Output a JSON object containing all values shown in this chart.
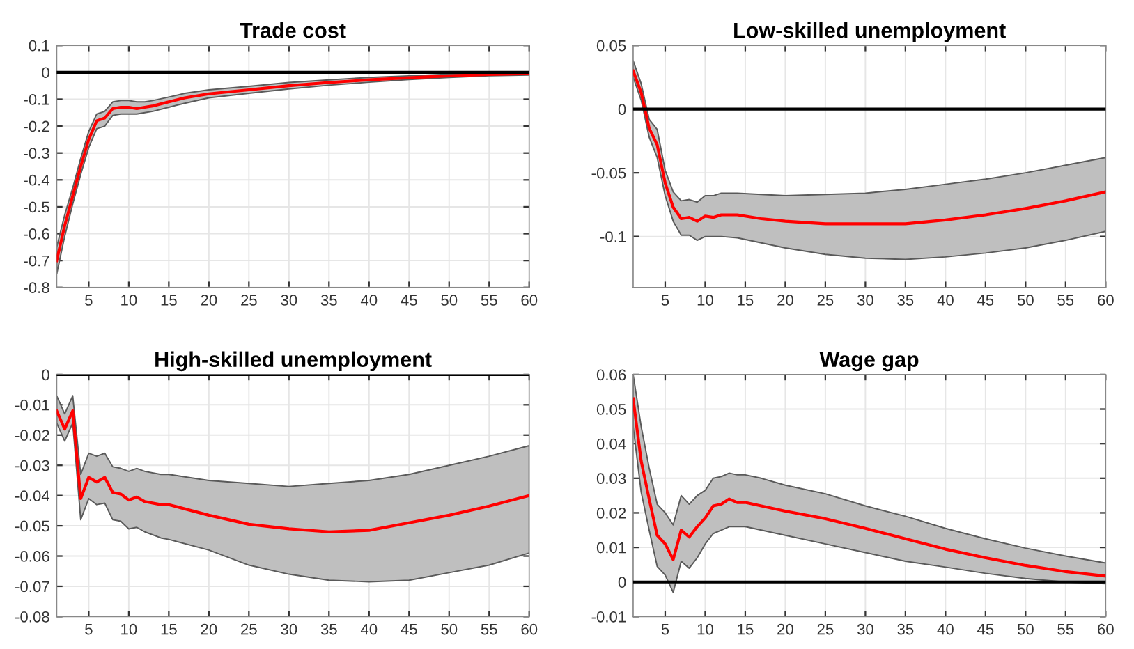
{
  "chart_data": [
    {
      "type": "line",
      "title": "Trade cost",
      "xlim": [
        1,
        60
      ],
      "xticks": [
        5,
        10,
        15,
        20,
        25,
        30,
        35,
        40,
        45,
        50,
        55,
        60
      ],
      "ylim": [
        -0.8,
        0.1
      ],
      "yticks": [
        -0.8,
        -0.7,
        -0.6,
        -0.5,
        -0.4,
        -0.3,
        -0.2,
        -0.1,
        0,
        0.1
      ],
      "grid": true,
      "ref_lines": [
        {
          "axis": "y",
          "value": 0,
          "color": "#000000"
        }
      ],
      "series": [
        {
          "color": "#ff0000",
          "x": [
            1,
            2,
            3,
            4,
            5,
            6,
            7,
            8,
            9,
            10,
            11,
            12,
            13,
            15,
            17,
            20,
            25,
            30,
            35,
            40,
            45,
            50,
            55,
            60
          ],
          "values": [
            -0.7,
            -0.57,
            -0.46,
            -0.35,
            -0.25,
            -0.18,
            -0.17,
            -0.135,
            -0.13,
            -0.13,
            -0.135,
            -0.13,
            -0.125,
            -0.11,
            -0.095,
            -0.08,
            -0.065,
            -0.05,
            -0.038,
            -0.028,
            -0.02,
            -0.013,
            -0.008,
            -0.005
          ],
          "lower": [
            -0.75,
            -0.61,
            -0.49,
            -0.38,
            -0.28,
            -0.21,
            -0.2,
            -0.16,
            -0.155,
            -0.155,
            -0.155,
            -0.15,
            -0.145,
            -0.13,
            -0.115,
            -0.095,
            -0.078,
            -0.062,
            -0.048,
            -0.037,
            -0.027,
            -0.019,
            -0.013,
            -0.01
          ],
          "upper": [
            -0.65,
            -0.53,
            -0.43,
            -0.32,
            -0.22,
            -0.155,
            -0.145,
            -0.11,
            -0.105,
            -0.105,
            -0.11,
            -0.11,
            -0.105,
            -0.092,
            -0.078,
            -0.065,
            -0.052,
            -0.038,
            -0.028,
            -0.019,
            -0.013,
            -0.007,
            -0.003,
            -0.001
          ]
        }
      ]
    },
    {
      "type": "line",
      "title": "Low-skilled unemployment",
      "xlim": [
        1,
        60
      ],
      "xticks": [
        5,
        10,
        15,
        20,
        25,
        30,
        35,
        40,
        45,
        50,
        55,
        60
      ],
      "ylim": [
        -0.14,
        0.05
      ],
      "yticks": [
        -0.1,
        -0.05,
        0,
        0.05
      ],
      "grid": true,
      "ref_lines": [
        {
          "axis": "y",
          "value": 0,
          "color": "#000000"
        }
      ],
      "series": [
        {
          "color": "#ff0000",
          "x": [
            1,
            2,
            3,
            4,
            5,
            6,
            7,
            8,
            9,
            10,
            11,
            12,
            14,
            17,
            20,
            25,
            30,
            35,
            40,
            45,
            50,
            55,
            60
          ],
          "values": [
            0.03,
            0.013,
            -0.015,
            -0.028,
            -0.058,
            -0.077,
            -0.086,
            -0.085,
            -0.088,
            -0.084,
            -0.085,
            -0.083,
            -0.083,
            -0.086,
            -0.088,
            -0.09,
            -0.09,
            -0.09,
            -0.087,
            -0.083,
            -0.078,
            -0.072,
            -0.065
          ],
          "lower": [
            0.025,
            0.007,
            -0.022,
            -0.038,
            -0.068,
            -0.088,
            -0.099,
            -0.099,
            -0.103,
            -0.1,
            -0.1,
            -0.1,
            -0.101,
            -0.105,
            -0.109,
            -0.114,
            -0.117,
            -0.118,
            -0.116,
            -0.113,
            -0.109,
            -0.103,
            -0.096
          ],
          "upper": [
            0.038,
            0.02,
            -0.008,
            -0.016,
            -0.048,
            -0.065,
            -0.072,
            -0.071,
            -0.073,
            -0.068,
            -0.068,
            -0.066,
            -0.066,
            -0.067,
            -0.068,
            -0.067,
            -0.066,
            -0.063,
            -0.059,
            -0.055,
            -0.05,
            -0.044,
            -0.038
          ]
        }
      ]
    },
    {
      "type": "line",
      "title": "High-skilled unemployment",
      "xlim": [
        1,
        60
      ],
      "xticks": [
        5,
        10,
        15,
        20,
        25,
        30,
        35,
        40,
        45,
        50,
        55,
        60
      ],
      "ylim": [
        -0.08,
        0
      ],
      "yticks": [
        -0.08,
        -0.07,
        -0.06,
        -0.05,
        -0.04,
        -0.03,
        -0.02,
        -0.01,
        0
      ],
      "grid": true,
      "ref_lines": [
        {
          "axis": "y",
          "value": 0,
          "color": "#000000"
        }
      ],
      "series": [
        {
          "color": "#ff0000",
          "x": [
            1,
            2,
            3,
            4,
            5,
            6,
            7,
            8,
            9,
            10,
            11,
            12,
            14,
            15,
            20,
            25,
            30,
            35,
            40,
            45,
            50,
            55,
            60
          ],
          "values": [
            -0.012,
            -0.018,
            -0.012,
            -0.041,
            -0.034,
            -0.0355,
            -0.034,
            -0.039,
            -0.0395,
            -0.0415,
            -0.0405,
            -0.042,
            -0.043,
            -0.043,
            -0.0465,
            -0.0495,
            -0.051,
            -0.052,
            -0.0515,
            -0.049,
            -0.0465,
            -0.0435,
            -0.04
          ],
          "lower": [
            -0.016,
            -0.022,
            -0.016,
            -0.048,
            -0.041,
            -0.043,
            -0.0425,
            -0.048,
            -0.0485,
            -0.051,
            -0.0505,
            -0.052,
            -0.054,
            -0.0545,
            -0.058,
            -0.063,
            -0.066,
            -0.068,
            -0.0685,
            -0.068,
            -0.0655,
            -0.063,
            -0.059
          ],
          "upper": [
            -0.007,
            -0.013,
            -0.007,
            -0.033,
            -0.026,
            -0.027,
            -0.026,
            -0.0305,
            -0.031,
            -0.032,
            -0.031,
            -0.032,
            -0.033,
            -0.033,
            -0.035,
            -0.036,
            -0.037,
            -0.036,
            -0.035,
            -0.033,
            -0.03,
            -0.027,
            -0.0235
          ]
        }
      ]
    },
    {
      "type": "line",
      "title": "Wage gap",
      "xlim": [
        1,
        60
      ],
      "xticks": [
        5,
        10,
        15,
        20,
        25,
        30,
        35,
        40,
        45,
        50,
        55,
        60
      ],
      "ylim": [
        -0.01,
        0.06
      ],
      "yticks": [
        -0.01,
        0,
        0.01,
        0.02,
        0.03,
        0.04,
        0.05,
        0.06
      ],
      "grid": true,
      "ref_lines": [
        {
          "axis": "y",
          "value": 0,
          "color": "#000000"
        }
      ],
      "series": [
        {
          "color": "#ff0000",
          "x": [
            1,
            2,
            3,
            4,
            5,
            6,
            7,
            8,
            9,
            10,
            11,
            12,
            13,
            14,
            15,
            17,
            20,
            25,
            30,
            35,
            40,
            45,
            50,
            55,
            60
          ],
          "values": [
            0.053,
            0.035,
            0.024,
            0.0135,
            0.011,
            0.0065,
            0.015,
            0.013,
            0.016,
            0.0185,
            0.022,
            0.0225,
            0.024,
            0.023,
            0.023,
            0.022,
            0.0205,
            0.0183,
            0.0155,
            0.0125,
            0.0095,
            0.007,
            0.0048,
            0.003,
            0.0017
          ],
          "lower": [
            0.045,
            0.026,
            0.015,
            0.0045,
            0.002,
            -0.003,
            0.006,
            0.004,
            0.007,
            0.011,
            0.014,
            0.015,
            0.016,
            0.016,
            0.016,
            0.015,
            0.0135,
            0.011,
            0.0085,
            0.006,
            0.0043,
            0.0025,
            0.001,
            0.0,
            -0.0005
          ],
          "upper": [
            0.06,
            0.045,
            0.033,
            0.0225,
            0.02,
            0.0165,
            0.025,
            0.0225,
            0.025,
            0.0265,
            0.03,
            0.0305,
            0.0315,
            0.031,
            0.031,
            0.03,
            0.028,
            0.0255,
            0.022,
            0.019,
            0.0155,
            0.0125,
            0.0098,
            0.0075,
            0.0055
          ]
        }
      ]
    }
  ]
}
